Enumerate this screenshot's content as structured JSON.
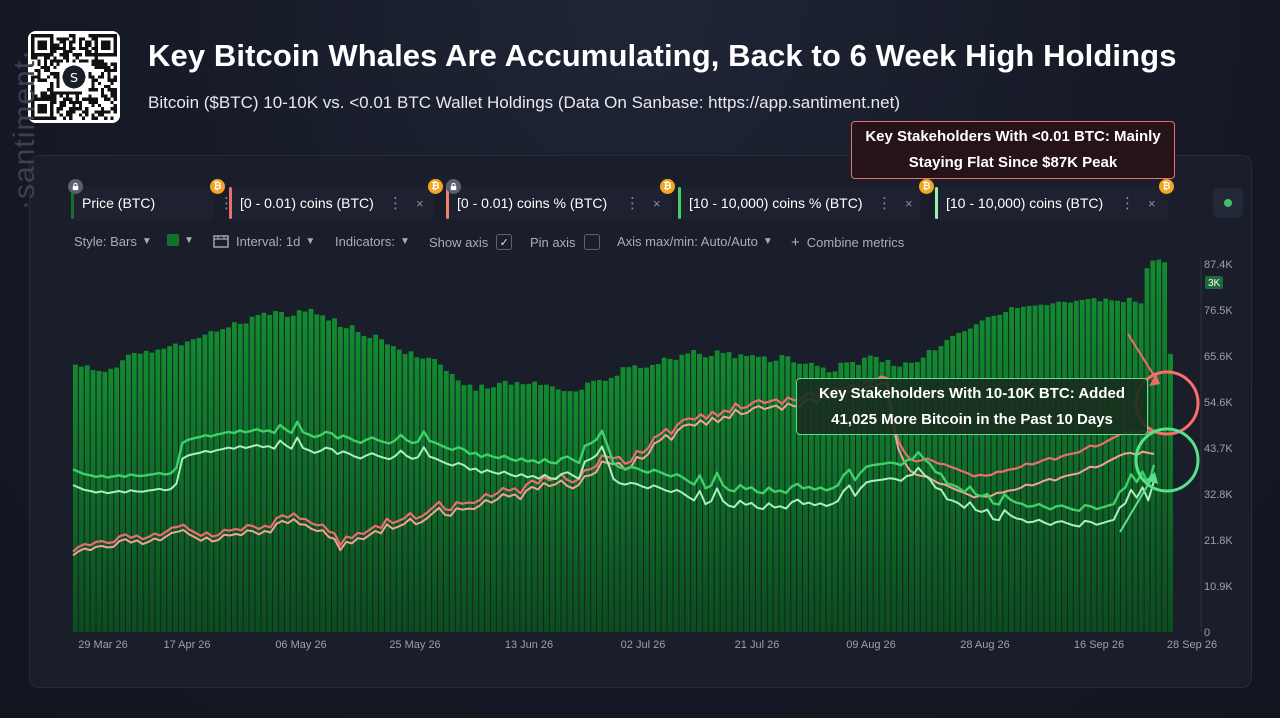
{
  "header": {
    "title": "Key Bitcoin Whales Are Accumulating, Back to 6 Week High Holdings",
    "subtitle": "Bitcoin ($BTC) 10-10K vs. <0.01 BTC Wallet Holdings (Data On Sanbase: https://app.santiment.net)"
  },
  "metrics": [
    {
      "label": "Price (BTC)",
      "color": "#14712d",
      "locked": true,
      "dots": "⋮",
      "close": "×"
    },
    {
      "label": "[0 - 0.01) coins (BTC)",
      "color": "#ec6d6d",
      "locked": false,
      "dots": "⋮",
      "close": "×"
    },
    {
      "label": "[0 - 0.01) coins % (BTC)",
      "color": "#f08070",
      "locked": true,
      "dots": "⋮",
      "close": "×"
    },
    {
      "label": "[10 - 10,000) coins % (BTC)",
      "color": "#3fd06a",
      "locked": false,
      "dots": "⋮",
      "close": "×"
    },
    {
      "label": "[10 - 10,000) coins (BTC)",
      "color": "#9df0b0",
      "locked": false,
      "dots": "⋮",
      "close": "×"
    }
  ],
  "badges": {
    "btc": "₿"
  },
  "toolbar": {
    "style": "Style: Bars",
    "interval": "Interval: 1d",
    "indicators": "Indicators:",
    "show_axis": "Show axis",
    "show_axis_check": "✓",
    "pin_axis": "Pin axis",
    "axis_maxmin": "Axis max/min: Auto/Auto",
    "combine": "Combine metrics",
    "combine_plus": "+"
  },
  "watermark": "·santiment·",
  "annotations": {
    "red": {
      "line1": "Key Stakeholders With <0.01 BTC: Mainly",
      "line2": "Staying Flat Since $87K Peak"
    },
    "green": {
      "line1": "Key Stakeholders With 10-10K BTC: Added",
      "line2": "41,025 More Bitcoin in the Past 10 Days"
    }
  },
  "colors": {
    "bar": "#106a27",
    "bar_dark": "#0b4a1c",
    "red_line": "#ec6d6d",
    "red_line2": "#f3a197",
    "green_line": "#3fd06a",
    "green_line2": "#a8f0bc",
    "accent_green": "#59e08a"
  },
  "chart_data": {
    "type": "bar",
    "x_tick_labels": [
      "29 Mar 26",
      "17 Apr 26",
      "06 May 26",
      "25 May 26",
      "13 Jun 26",
      "02 Jul 26",
      "21 Jul 26",
      "09 Aug 26",
      "28 Aug 26",
      "16 Sep 26",
      "28 Sep 26"
    ],
    "y_tick_labels": [
      "87.4K",
      "76.5K",
      "65.6K",
      "54.6K",
      "43.7K",
      "32.8K",
      "21.8K",
      "10.9K",
      "0"
    ],
    "y_partial_label": "3K",
    "ylim": [
      0,
      87400
    ],
    "grid": false,
    "bars": {
      "name": "Price (BTC)",
      "values": [
        62500,
        62000,
        62300,
        61200,
        61000,
        60800,
        61500,
        61800,
        63500,
        64800,
        65200,
        65000,
        65700,
        65300,
        66000,
        66200,
        66800,
        67400,
        67000,
        67900,
        68400,
        68700,
        69500,
        70300,
        70200,
        70800,
        71200,
        72400,
        72000,
        72100,
        73700,
        74100,
        74600,
        74100,
        75000,
        74800,
        73600,
        73900,
        75200,
        74900,
        75500,
        74200,
        74000,
        72800,
        73300,
        71300,
        71000,
        71700,
        70100,
        69200,
        68700,
        69500,
        68400,
        67200,
        66800,
        66000,
        65000,
        65600,
        64200,
        63900,
        64100,
        63800,
        62500,
        61000,
        60300,
        58800,
        57700,
        57800,
        56400,
        57800,
        56900,
        57200,
        58200,
        58700,
        57800,
        58400,
        57900,
        58000,
        58500,
        57700,
        57800,
        57400,
        56700,
        56300,
        56300,
        56200,
        56600,
        58300,
        58700,
        58900,
        58700,
        59400,
        59900,
        61900,
        61900,
        62300,
        61700,
        61800,
        62400,
        62600,
        64100,
        63800,
        63600,
        64800,
        65100,
        65900,
        65000,
        64200,
        64500,
        65800,
        65200,
        65400,
        64000,
        64900,
        64500,
        64700,
        64300,
        64400,
        63100,
        63400,
        64700,
        64400,
        63000,
        62700,
        62700,
        62900,
        62200,
        61800,
        60700,
        60900,
        62900,
        63000,
        63100,
        62400,
        64100,
        64600,
        64300,
        63100,
        63600,
        62200,
        62000,
        63000,
        62900,
        63100,
        64100,
        65900,
        65800,
        66800,
        68200,
        69200,
        69900,
        70300,
        70900,
        71900,
        72800,
        73600,
        73900,
        74100,
        74800,
        75900,
        75700,
        76000,
        76200,
        76300,
        76500,
        76400,
        76800,
        77200,
        77100,
        77000,
        77400,
        77600,
        77800,
        78000,
        77300,
        77900,
        77500,
        77400,
        77100,
        78100,
        77200,
        76800,
        85000,
        86800,
        87000,
        86400,
        65000
      ]
    },
    "series": [
      {
        "name": "[0 - 0.01) coins (BTC)",
        "values": [
          21.5,
          22.8,
          23.5,
          23.2,
          24.1,
          24.3,
          23.8,
          24.0,
          25.6,
          26.1,
          25.2,
          25.8,
          24.8,
          25.4,
          26.3,
          25.8,
          26.8,
          27.9,
          28.1,
          28.7,
          27.4,
          26.6,
          25.7,
          26.6,
          25.5,
          25.9,
          27.3,
          27.1,
          27.5,
          27.2,
          28.6,
          28.3,
          27.5,
          28.4,
          28.0,
          30.4,
          31.2,
          30.6,
          31.7,
          30.3,
          30.2,
          29.1,
          28.5,
          28.7,
          26.9,
          26.4,
          23.2,
          25.5,
          25.1,
          26.5,
          26.2,
          27.3,
          28.4,
          27.8,
          30.3,
          29.1,
          29.7,
          30.4,
          31.8,
          30.3,
          30.9,
          32.0,
          33.4,
          34.8,
          32.8,
          32.6,
          34.7,
          34.3,
          34.6,
          34.5,
          35.3,
          36.9,
          36.2,
          37.1,
          38.5,
          37.8,
          38.4,
          37.1,
          39.4,
          40.5,
          39.7,
          41.4,
          40.6,
          41.1,
          42.1,
          40.7,
          40.0,
          40.9,
          43.2,
          43.5,
          44.3,
          47.2,
          46.8,
          46.5,
          46.8,
          45.0,
          45.6,
          48.4,
          47.9,
          49.2,
          52.0,
          52.8,
          54.3,
          53.0,
          55.4,
          56.7,
          57.1,
          56.8,
          58.2,
          57.0,
          58.9,
          57.7,
          59.2,
          58.8,
          61.1,
          59.8,
          60.2,
          61.4,
          62.0,
          61.2,
          61.7,
          62.2,
          61.0,
          62.7,
          62.0,
          61.9,
          63.5,
          64.0,
          62.8,
          64.6,
          63.8,
          65.1,
          64.7,
          65.4,
          66.0,
          65.2,
          66.3,
          67.4,
          67.0,
          68.3,
          67.9,
          57.7,
          51.0,
          48.2,
          46.3,
          45.6,
          45.9,
          46.4,
          45.7,
          45.0,
          44.8,
          44.2,
          43.6,
          43.0,
          42.4,
          41.6,
          42.0,
          41.8,
          42.0,
          42.8,
          42.9,
          43.4,
          43.6,
          44.1,
          45.0,
          44.8,
          45.3,
          46.0,
          46.5,
          46.1,
          46.9,
          47.4,
          47.7,
          48.0,
          48.9,
          49.8,
          49.6,
          50.2,
          51.1,
          51.9,
          52.7,
          53.3,
          53.5,
          52.9,
          53.8,
          53.5,
          53.2
        ]
      },
      {
        "name": "[0 - 0.01) coins % (BTC)",
        "values": [
          20.5,
          21.6,
          22.3,
          21.9,
          22.8,
          23.0,
          22.6,
          22.8,
          24.3,
          24.8,
          23.9,
          24.5,
          23.5,
          24.1,
          25.0,
          24.5,
          25.5,
          26.5,
          26.8,
          27.3,
          26.1,
          25.3,
          24.4,
          25.3,
          24.2,
          24.6,
          26.0,
          25.8,
          26.2,
          25.9,
          27.2,
          26.9,
          26.1,
          27.0,
          26.6,
          28.9,
          29.7,
          29.1,
          30.2,
          28.8,
          28.7,
          27.6,
          27.0,
          27.2,
          25.4,
          24.9,
          21.9,
          24.1,
          23.7,
          25.1,
          24.8,
          25.9,
          27.0,
          26.4,
          28.8,
          27.6,
          28.2,
          28.9,
          30.3,
          28.8,
          29.4,
          30.5,
          31.9,
          33.2,
          31.3,
          31.1,
          33.1,
          32.7,
          33.0,
          32.9,
          33.8,
          35.3,
          34.6,
          35.5,
          36.9,
          36.2,
          36.8,
          35.5,
          37.8,
          38.8,
          38.1,
          39.8,
          39.0,
          39.5,
          40.5,
          39.1,
          38.4,
          39.3,
          41.6,
          41.9,
          42.7,
          45.6,
          45.2,
          44.9,
          45.2,
          43.4,
          44.0,
          46.8,
          46.3,
          47.6,
          50.4,
          51.2,
          52.7,
          51.4,
          53.8,
          55.1,
          55.5,
          55.2,
          56.6,
          55.4,
          57.3,
          56.1,
          57.6,
          57.2,
          59.5,
          58.2,
          58.6,
          59.8,
          60.4,
          59.6,
          60.1,
          60.6,
          59.4,
          61.1,
          60.4,
          60.3,
          61.9,
          62.4,
          61.2,
          63.0,
          62.2,
          63.5,
          63.1,
          63.8,
          64.4,
          63.6,
          64.7,
          65.8,
          65.4,
          66.7,
          66.3,
          56.1,
          49.0,
          45.6,
          43.2,
          42.1,
          41.7,
          41.5,
          40.6,
          39.7,
          39.4,
          38.7,
          38.0,
          37.4,
          36.8,
          36.0,
          36.4,
          36.2,
          36.4,
          37.2,
          37.3,
          37.8,
          38.0,
          38.5,
          39.4,
          39.2,
          39.7,
          40.4,
          40.9,
          40.5,
          41.3,
          41.8,
          42.1,
          42.4,
          43.3,
          44.2,
          44.0,
          44.6,
          45.5,
          46.3,
          47.1,
          47.7,
          47.9,
          47.3,
          48.2,
          47.9,
          47.6
        ]
      },
      {
        "name": "[10 - 10,000) coins % (BTC)",
        "values": [
          43.5,
          42.8,
          42.2,
          41.9,
          41.5,
          41.8,
          41.3,
          41.6,
          41.9,
          41.5,
          42.1,
          41.8,
          41.7,
          42.0,
          42.2,
          42.5,
          42.1,
          42.4,
          43.9,
          50.5,
          51.4,
          51.8,
          52.1,
          52.6,
          52.3,
          52.8,
          53.1,
          53.5,
          53.2,
          53.9,
          53.4,
          53.8,
          54.2,
          53.6,
          53.9,
          53.2,
          55.4,
          54.1,
          53.2,
          56.2,
          53.4,
          52.8,
          52.1,
          52.6,
          53.5,
          53.1,
          51.8,
          52.5,
          51.9,
          51.1,
          50.6,
          51.4,
          52.0,
          51.3,
          50.8,
          50.4,
          51.2,
          52.7,
          51.3,
          50.5,
          50.9,
          53.6,
          51.1,
          50.6,
          49.9,
          49.2,
          48.7,
          49.4,
          48.8,
          47.6,
          47.9,
          46.8,
          47.5,
          46.9,
          46.5,
          47.1,
          46.3,
          45.8,
          46.4,
          45.6,
          45.9,
          45.2,
          46.2,
          45.3,
          45.1,
          46.5,
          46.9,
          46.0,
          45.2,
          49.8,
          50.4,
          51.4,
          53.8,
          49.6,
          45.1,
          44.0,
          43.6,
          44.1,
          43.8,
          43.1,
          42.6,
          43.4,
          42.8,
          42.1,
          41.6,
          42.2,
          41.4,
          40.3,
          39.4,
          41.9,
          38.4,
          39.2,
          42.6,
          39.3,
          38.0,
          37.6,
          39.3,
          38.2,
          38.7,
          37.4,
          37.1,
          38.6,
          37.5,
          37.8,
          37.2,
          38.9,
          39.6,
          38.4,
          38.8,
          38.1,
          38.6,
          37.9,
          38.4,
          39.2,
          41.9,
          43.4,
          40.6,
          42.7,
          44.2,
          44.6,
          44.8,
          45.0,
          45.3,
          45.1,
          44.6,
          45.9,
          46.2,
          48.1,
          46.3,
          45.0,
          42.8,
          42.2,
          39.7,
          39.3,
          38.6,
          37.4,
          38.9,
          36.8,
          36.3,
          36.9,
          34.4,
          34.1,
          36.8,
          35.4,
          34.6,
          34.3,
          33.5,
          33.7,
          34.2,
          33.4,
          32.8,
          33.6,
          33.8,
          33.2,
          32.7,
          32.4,
          33.9,
          33.6,
          32.9,
          33.3,
          33.8,
          34.2,
          37.4,
          38.6,
          42.2,
          40.1,
          42.9,
          39.4,
          44.7
        ]
      },
      {
        "name": "[10 - 10,000) coins (BTC)",
        "values": [
          39.3,
          38.6,
          38.0,
          37.7,
          37.3,
          37.6,
          37.1,
          37.4,
          37.7,
          37.3,
          37.9,
          37.6,
          37.5,
          37.8,
          38.0,
          38.3,
          37.9,
          38.2,
          39.7,
          46.3,
          47.2,
          47.6,
          47.9,
          48.4,
          48.1,
          48.6,
          48.9,
          49.3,
          49.0,
          49.7,
          49.2,
          49.6,
          50.0,
          49.4,
          49.7,
          49.0,
          51.2,
          49.9,
          49.0,
          52.0,
          49.2,
          48.6,
          47.9,
          48.4,
          49.3,
          48.9,
          47.6,
          48.3,
          47.7,
          46.9,
          46.4,
          47.2,
          47.8,
          47.1,
          46.6,
          46.2,
          47.0,
          48.5,
          47.1,
          46.3,
          46.7,
          49.4,
          46.9,
          46.4,
          45.7,
          45.0,
          44.5,
          45.2,
          44.6,
          43.4,
          43.7,
          42.6,
          43.3,
          42.7,
          42.3,
          42.9,
          42.1,
          41.6,
          42.2,
          41.4,
          41.7,
          41.0,
          42.0,
          41.1,
          40.9,
          42.3,
          42.7,
          41.8,
          41.0,
          45.6,
          46.2,
          47.2,
          49.6,
          45.4,
          40.9,
          39.8,
          39.4,
          39.9,
          39.6,
          38.9,
          38.4,
          39.2,
          38.6,
          37.9,
          37.4,
          38.0,
          37.2,
          36.1,
          35.2,
          37.7,
          34.2,
          35.0,
          38.4,
          35.1,
          33.8,
          33.4,
          35.1,
          34.0,
          34.5,
          33.2,
          32.9,
          34.4,
          33.3,
          33.6,
          33.0,
          34.7,
          35.4,
          34.2,
          34.6,
          33.9,
          34.4,
          33.7,
          34.2,
          35.0,
          37.7,
          39.2,
          36.4,
          38.5,
          40.0,
          40.4,
          40.6,
          40.8,
          41.1,
          40.9,
          40.4,
          41.7,
          42.0,
          43.9,
          42.1,
          40.8,
          38.6,
          38.0,
          35.5,
          35.1,
          34.4,
          33.2,
          34.7,
          32.6,
          32.1,
          32.7,
          30.2,
          29.9,
          32.6,
          31.2,
          30.4,
          30.1,
          29.3,
          29.5,
          30.0,
          29.2,
          28.6,
          29.4,
          29.6,
          29.0,
          28.5,
          28.2,
          29.7,
          29.4,
          28.7,
          29.1,
          29.6,
          30.0,
          33.2,
          34.4,
          38.0,
          35.9,
          38.7,
          35.2,
          40.5
        ]
      }
    ]
  }
}
